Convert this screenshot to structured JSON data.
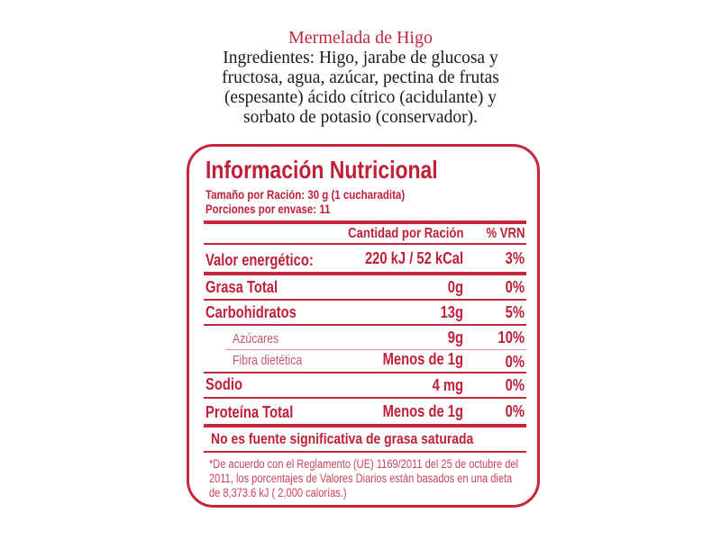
{
  "product": {
    "title": "Mermelada de Higo",
    "ingredients": "Ingredientes: Higo, jarabe de glucosa y fructosa, agua, azúcar, pectina de frutas (espesante) ácido cítrico (acidulante) y sorbato de potasio (conservador)."
  },
  "label": {
    "title": "Información Nutricional",
    "serving_size": "Tamaño por Ración:  30 g (1 cucharadita)",
    "servings_per_container": "Porciones por envase: 11",
    "col_amount": "Cantidad por Ración",
    "col_vrn": "% VRN",
    "rows": [
      {
        "name": "Valor energético:",
        "amount": "220 kJ / 52 kCal",
        "vrn": "3%"
      },
      {
        "name": "Grasa Total",
        "amount": "0g",
        "vrn": "0%"
      },
      {
        "name": "Carbohidratos",
        "amount": "13g",
        "vrn": "5%"
      },
      {
        "name": "Azúcares",
        "amount": "9g",
        "vrn": "10%"
      },
      {
        "name": "Fibra dietética",
        "amount": "Menos de 1g",
        "vrn": "0%"
      },
      {
        "name": "Sodio",
        "amount": "4 mg",
        "vrn": "0%"
      },
      {
        "name": "Proteína Total",
        "amount": "Menos de 1g",
        "vrn": "0%"
      }
    ],
    "note": "No es fuente significativa de grasa saturada",
    "footnote": "*De acuerdo con el Reglamento (UE) 1169/2011 del 25 de octubre del 2011,  los porcentajes de Valores Diarios están basados en una dieta de 8,373.6 kJ  ( 2,000 calorías.)"
  },
  "colors": {
    "label_red": "#c8243c",
    "title_red": "#c0283c"
  }
}
